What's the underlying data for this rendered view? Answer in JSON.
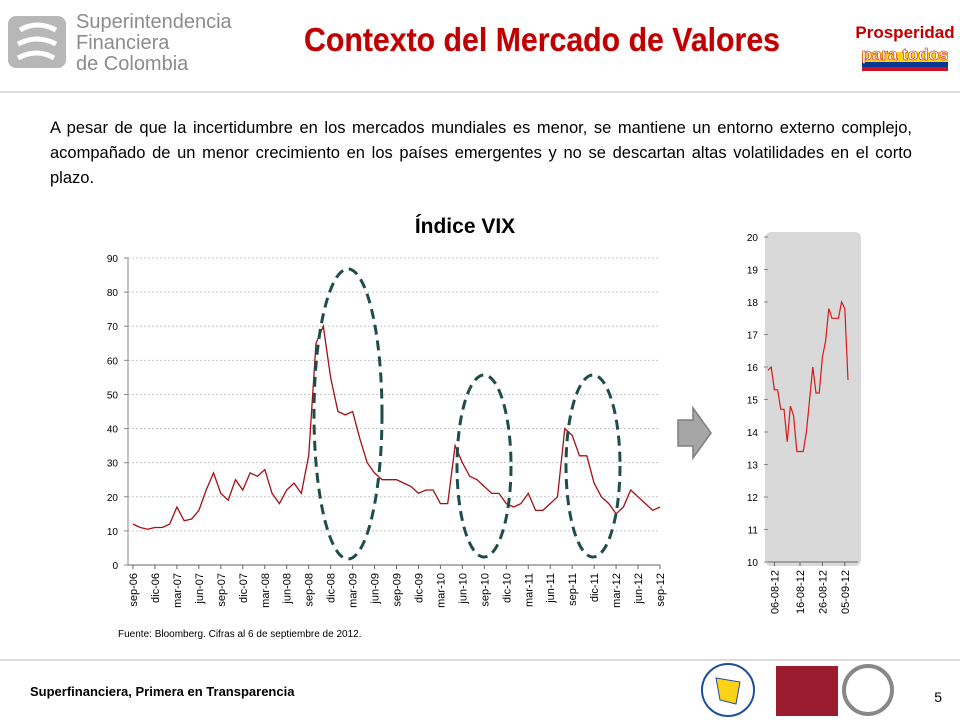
{
  "header": {
    "logo_text": [
      "Superintendencia",
      "Financiera",
      "de Colombia"
    ],
    "title": "Contexto del Mercado de Valores",
    "badge": [
      "Prosperidad",
      "para todos"
    ]
  },
  "body": {
    "paragraph": "A pesar de que la incertidumbre en los mercados mundiales es menor, se mantiene un entorno externo complejo, acompañado de un menor crecimiento en los países emergentes y no se descartan altas volatilidades en el corto plazo."
  },
  "chart_data": [
    {
      "type": "line",
      "title": "Índice VIX",
      "categories": [
        "sep-06",
        null,
        null,
        "dic-06",
        null,
        null,
        "mar-07",
        null,
        null,
        "jun-07",
        null,
        null,
        "sep-07",
        null,
        null,
        "dic-07",
        null,
        null,
        "mar-08",
        null,
        null,
        "jun-08",
        null,
        null,
        "sep-08",
        null,
        null,
        "dic-08",
        null,
        null,
        "mar-09",
        null,
        null,
        "jun-09",
        null,
        null,
        "sep-09",
        null,
        null,
        "dic-09",
        null,
        null,
        "mar-10",
        null,
        null,
        "jun-10",
        null,
        null,
        "sep-10",
        null,
        null,
        "dic-10",
        null,
        null,
        "mar-11",
        null,
        null,
        "jun-11",
        null,
        null,
        "sep-11",
        null,
        null,
        "dic-11",
        null,
        null,
        "mar-12",
        null,
        null,
        "jun-12",
        null,
        null,
        "sep-12"
      ],
      "values": [
        12,
        11,
        10.5,
        11,
        11,
        12,
        17,
        13,
        13.5,
        16,
        22,
        27,
        21,
        19,
        25,
        22,
        27,
        26,
        28,
        21,
        18,
        22,
        24,
        21,
        32,
        65,
        70,
        55,
        45,
        44,
        45,
        37,
        30,
        27,
        25,
        25,
        25,
        24,
        23,
        21,
        22,
        22,
        18,
        18,
        35,
        30,
        26,
        25,
        23,
        21,
        21,
        18,
        17,
        18,
        21,
        16,
        16,
        18,
        20,
        40,
        38,
        32,
        32,
        24,
        20,
        18,
        15,
        17,
        22,
        20,
        18,
        16,
        17
      ],
      "color": "#a50f15",
      "ylim": [
        0,
        90
      ],
      "yticks": [
        0,
        10,
        20,
        30,
        40,
        50,
        60,
        70,
        80,
        90
      ],
      "grid": true,
      "source": "Fuente: Bloomberg. Cifras al  6 de septiembre de 2012."
    },
    {
      "type": "line",
      "categories": [
        null,
        null,
        "06-08-12",
        null,
        null,
        null,
        null,
        null,
        null,
        null,
        "16-08-12",
        null,
        null,
        null,
        null,
        null,
        null,
        "26-08-12",
        null,
        null,
        null,
        null,
        null,
        null,
        "05-09-12",
        null
      ],
      "values": [
        15.9,
        16,
        15.3,
        15.3,
        14.7,
        14.7,
        13.7,
        14.8,
        14.5,
        13.4,
        13.4,
        13.4,
        14,
        15,
        16,
        15.2,
        15.2,
        16.3,
        16.8,
        17.8,
        17.5,
        17.5,
        17.5,
        18,
        17.8,
        15.6
      ],
      "color": "#d7191c",
      "ylim": [
        10,
        20
      ],
      "yticks": [
        10,
        11,
        12,
        13,
        14,
        15,
        16,
        17,
        18,
        19,
        20
      ],
      "grid": false
    }
  ],
  "footer": {
    "slogan": "Superfinanciera, Primera en Transparencia",
    "page": 5
  }
}
